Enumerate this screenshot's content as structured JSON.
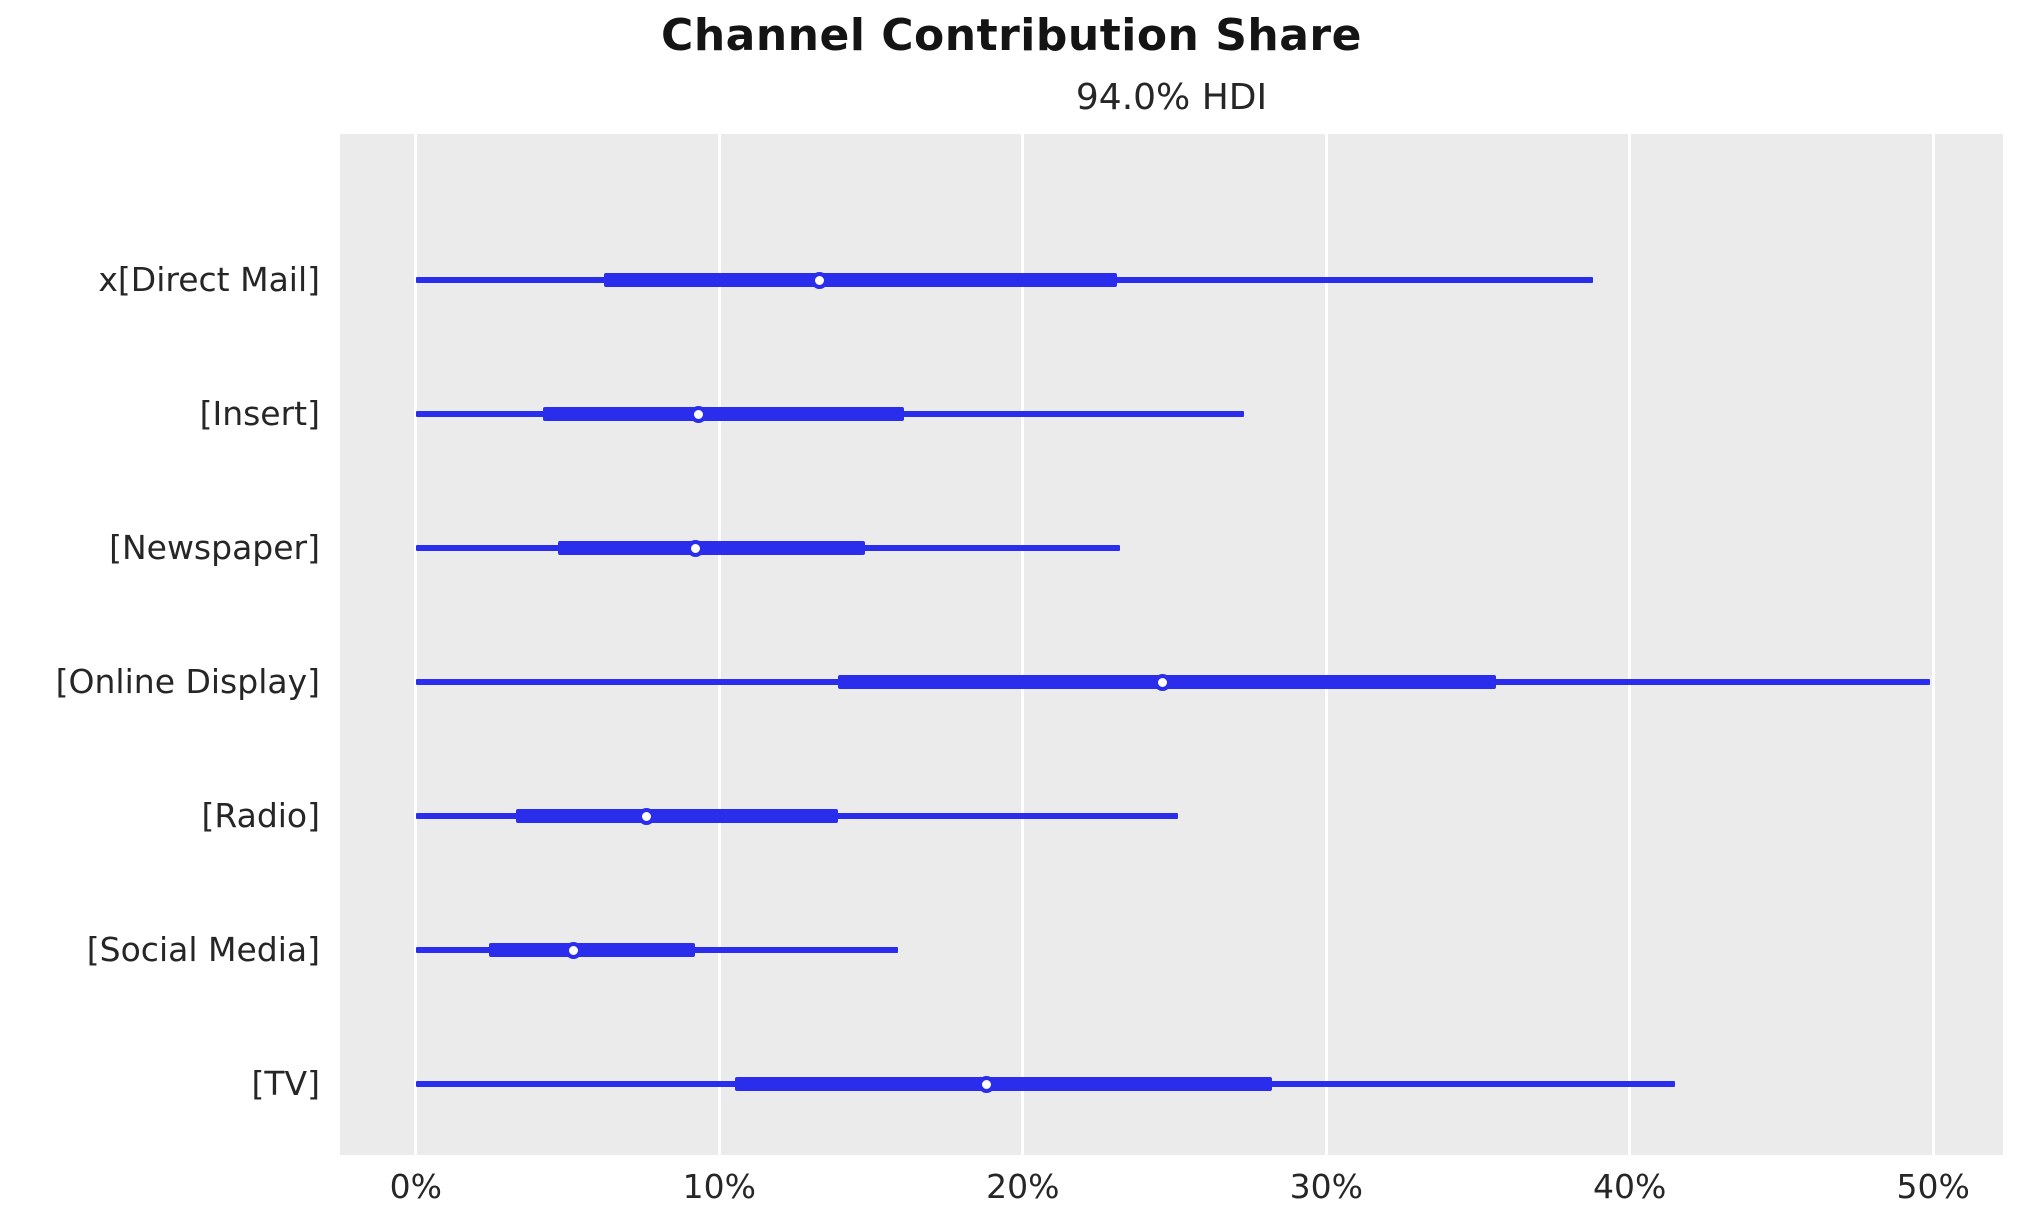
{
  "chart_data": {
    "type": "forest",
    "title": "Channel Contribution Share",
    "subtitle": "94.0% HDI",
    "xlabel": "",
    "ylabel": "",
    "xlim": [
      -2.5,
      52.3
    ],
    "grid": "vertical-only",
    "legend": null,
    "xticks": [
      {
        "value": 0,
        "label": "0%"
      },
      {
        "value": 10,
        "label": "10%"
      },
      {
        "value": 20,
        "label": "20%"
      },
      {
        "value": 30,
        "label": "30%"
      },
      {
        "value": 40,
        "label": "40%"
      },
      {
        "value": 50,
        "label": "50%"
      }
    ],
    "categories": [
      "x[Direct Mail]",
      "[Insert]",
      "[Newspaper]",
      "[Online Display]",
      "[Radio]",
      "[Social Media]",
      "[TV]"
    ],
    "series": [
      {
        "name": "x[Direct Mail]",
        "hdi_low": 0.0,
        "q_low": 6.2,
        "median": 13.3,
        "q_high": 23.1,
        "hdi_high": 38.8
      },
      {
        "name": "[Insert]",
        "hdi_low": 0.0,
        "q_low": 4.2,
        "median": 9.3,
        "q_high": 16.1,
        "hdi_high": 27.3
      },
      {
        "name": "[Newspaper]",
        "hdi_low": 0.0,
        "q_low": 4.7,
        "median": 9.2,
        "q_high": 14.8,
        "hdi_high": 23.2
      },
      {
        "name": "[Online Display]",
        "hdi_low": 0.0,
        "q_low": 13.9,
        "median": 24.6,
        "q_high": 35.6,
        "hdi_high": 49.9
      },
      {
        "name": "[Radio]",
        "hdi_low": 0.0,
        "q_low": 3.3,
        "median": 7.6,
        "q_high": 13.9,
        "hdi_high": 25.1
      },
      {
        "name": "[Social Media]",
        "hdi_low": 0.0,
        "q_low": 2.4,
        "median": 5.2,
        "q_high": 9.2,
        "hdi_high": 15.9
      },
      {
        "name": "[TV]",
        "hdi_low": 0.0,
        "q_low": 10.5,
        "median": 18.8,
        "q_high": 28.2,
        "hdi_high": 41.5
      }
    ],
    "colors": {
      "interval": "#2a2eec",
      "plot_background": "#ebebeb",
      "gridline": "#ffffff",
      "text": "#262626",
      "figure_background": "#ffffff",
      "dot_fill": "#ffffff"
    }
  }
}
